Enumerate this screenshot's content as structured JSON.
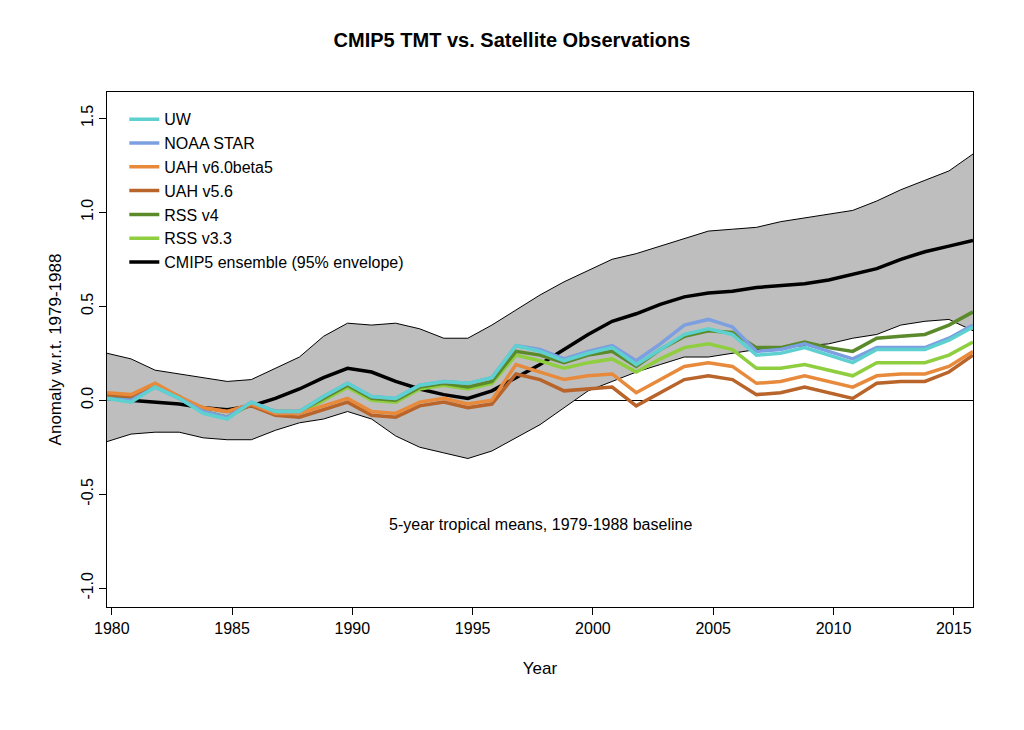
{
  "chart_data": {
    "type": "line",
    "title": "CMIP5 TMT vs. Satellite Observations",
    "x_label": "Year",
    "y_label": "Anomaly w.r.t. 1979-1988",
    "annotation": "5-year tropical means, 1979-1988 baseline",
    "x": [
      1979.8,
      1980.8,
      1981.8,
      1982.8,
      1983.8,
      1984.8,
      1985.8,
      1986.8,
      1987.8,
      1988.8,
      1989.8,
      1990.8,
      1991.8,
      1992.8,
      1993.8,
      1994.8,
      1995.8,
      1996.8,
      1997.8,
      1998.8,
      1999.8,
      2000.8,
      2001.8,
      2002.8,
      2003.8,
      2004.8,
      2005.8,
      2006.8,
      2007.8,
      2008.8,
      2009.8,
      2010.8,
      2011.8,
      2012.8,
      2013.8,
      2014.8,
      2015.8
    ],
    "xlim": [
      1979.8,
      2015.8
    ],
    "xticks": [
      1980,
      1985,
      1990,
      1995,
      2000,
      2005,
      2010,
      2015
    ],
    "ylim": [
      -1.1,
      1.64
    ],
    "yticks": [
      {
        "value": -1,
        "label": "-1.0"
      },
      -0.5,
      {
        "value": 0,
        "label": "0.0"
      },
      0.5,
      {
        "value": 1,
        "label": "1.0"
      },
      1.5
    ],
    "grid": false,
    "legend": "upper left",
    "series": [
      {
        "name": "CMIP5 ensemble (95% envelope)",
        "color": "#000000",
        "values": [
          0.01,
          0.0,
          -0.01,
          -0.02,
          -0.04,
          -0.05,
          -0.03,
          0.01,
          0.06,
          0.12,
          0.17,
          0.15,
          0.1,
          0.06,
          0.03,
          0.01,
          0.05,
          0.12,
          0.19,
          0.27,
          0.35,
          0.42,
          0.46,
          0.51,
          0.55,
          0.57,
          0.58,
          0.6,
          0.61,
          0.62,
          0.64,
          0.67,
          0.7,
          0.75,
          0.79,
          0.82,
          0.85
        ],
        "lower": [
          -0.22,
          -0.18,
          -0.17,
          -0.17,
          -0.2,
          -0.21,
          -0.21,
          -0.16,
          -0.12,
          -0.1,
          -0.06,
          -0.1,
          -0.19,
          -0.25,
          -0.28,
          -0.31,
          -0.27,
          -0.2,
          -0.13,
          -0.04,
          0.05,
          0.1,
          0.15,
          0.19,
          0.23,
          0.23,
          0.25,
          0.27,
          0.28,
          0.29,
          0.3,
          0.33,
          0.35,
          0.4,
          0.42,
          0.43,
          0.37
        ],
        "upper": [
          0.25,
          0.22,
          0.16,
          0.14,
          0.12,
          0.1,
          0.11,
          0.17,
          0.23,
          0.34,
          0.41,
          0.4,
          0.41,
          0.38,
          0.33,
          0.33,
          0.4,
          0.48,
          0.56,
          0.63,
          0.69,
          0.75,
          0.78,
          0.82,
          0.86,
          0.9,
          0.91,
          0.92,
          0.95,
          0.97,
          0.99,
          1.01,
          1.06,
          1.12,
          1.17,
          1.22,
          1.31
        ]
      },
      {
        "name": "RSS v3.3",
        "color": "#8fce3f",
        "values": [
          0.01,
          0.01,
          0.08,
          0.02,
          -0.06,
          -0.09,
          -0.02,
          -0.06,
          -0.07,
          0.0,
          0.07,
          0.0,
          -0.01,
          0.06,
          0.08,
          0.06,
          0.09,
          0.24,
          0.21,
          0.17,
          0.2,
          0.22,
          0.15,
          0.22,
          0.28,
          0.3,
          0.27,
          0.17,
          0.17,
          0.19,
          0.16,
          0.13,
          0.2,
          0.2,
          0.2,
          0.24,
          0.31
        ]
      },
      {
        "name": "RSS v4",
        "color": "#5b8a2b",
        "values": [
          0.01,
          0.01,
          0.08,
          0.02,
          -0.06,
          -0.09,
          -0.02,
          -0.06,
          -0.06,
          0.01,
          0.08,
          0.01,
          0.0,
          0.07,
          0.09,
          0.07,
          0.1,
          0.26,
          0.24,
          0.2,
          0.24,
          0.26,
          0.18,
          0.27,
          0.34,
          0.37,
          0.36,
          0.28,
          0.28,
          0.31,
          0.28,
          0.26,
          0.33,
          0.34,
          0.35,
          0.4,
          0.47
        ]
      },
      {
        "name": "UAH v5.6",
        "color": "#b8642a",
        "values": [
          0.03,
          0.02,
          0.08,
          0.01,
          -0.04,
          -0.06,
          -0.03,
          -0.08,
          -0.09,
          -0.05,
          -0.01,
          -0.08,
          -0.09,
          -0.03,
          -0.01,
          -0.04,
          -0.02,
          0.14,
          0.11,
          0.05,
          0.06,
          0.07,
          -0.03,
          0.04,
          0.11,
          0.13,
          0.11,
          0.03,
          0.04,
          0.07,
          0.04,
          0.01,
          0.09,
          0.1,
          0.1,
          0.15,
          0.24
        ]
      },
      {
        "name": "UAH v6.0beta5",
        "color": "#e88a3c",
        "values": [
          0.04,
          0.03,
          0.09,
          0.02,
          -0.04,
          -0.06,
          -0.02,
          -0.07,
          -0.07,
          -0.03,
          0.01,
          -0.06,
          -0.07,
          -0.01,
          0.01,
          -0.02,
          0.0,
          0.19,
          0.15,
          0.11,
          0.13,
          0.14,
          0.04,
          0.11,
          0.18,
          0.2,
          0.18,
          0.09,
          0.1,
          0.13,
          0.1,
          0.07,
          0.13,
          0.14,
          0.14,
          0.18,
          0.26
        ]
      },
      {
        "name": "NOAA STAR",
        "color": "#7b9fe0",
        "values": [
          0.01,
          0.0,
          0.07,
          0.01,
          -0.06,
          -0.09,
          -0.01,
          -0.06,
          -0.06,
          0.02,
          0.09,
          0.02,
          0.01,
          0.08,
          0.1,
          0.09,
          0.12,
          0.29,
          0.27,
          0.22,
          0.26,
          0.29,
          0.21,
          0.3,
          0.4,
          0.43,
          0.39,
          0.26,
          0.27,
          0.3,
          0.26,
          0.22,
          0.28,
          0.28,
          0.28,
          0.33,
          0.4
        ]
      },
      {
        "name": "UW",
        "color": "#5fd0d0",
        "values": [
          0.01,
          -0.01,
          0.07,
          0.01,
          -0.07,
          -0.1,
          -0.01,
          -0.06,
          -0.06,
          0.02,
          0.09,
          0.02,
          0.01,
          0.08,
          0.1,
          0.09,
          0.12,
          0.29,
          0.26,
          0.21,
          0.25,
          0.28,
          0.19,
          0.27,
          0.35,
          0.38,
          0.35,
          0.24,
          0.25,
          0.28,
          0.24,
          0.2,
          0.27,
          0.27,
          0.27,
          0.32,
          0.39
        ]
      }
    ]
  }
}
